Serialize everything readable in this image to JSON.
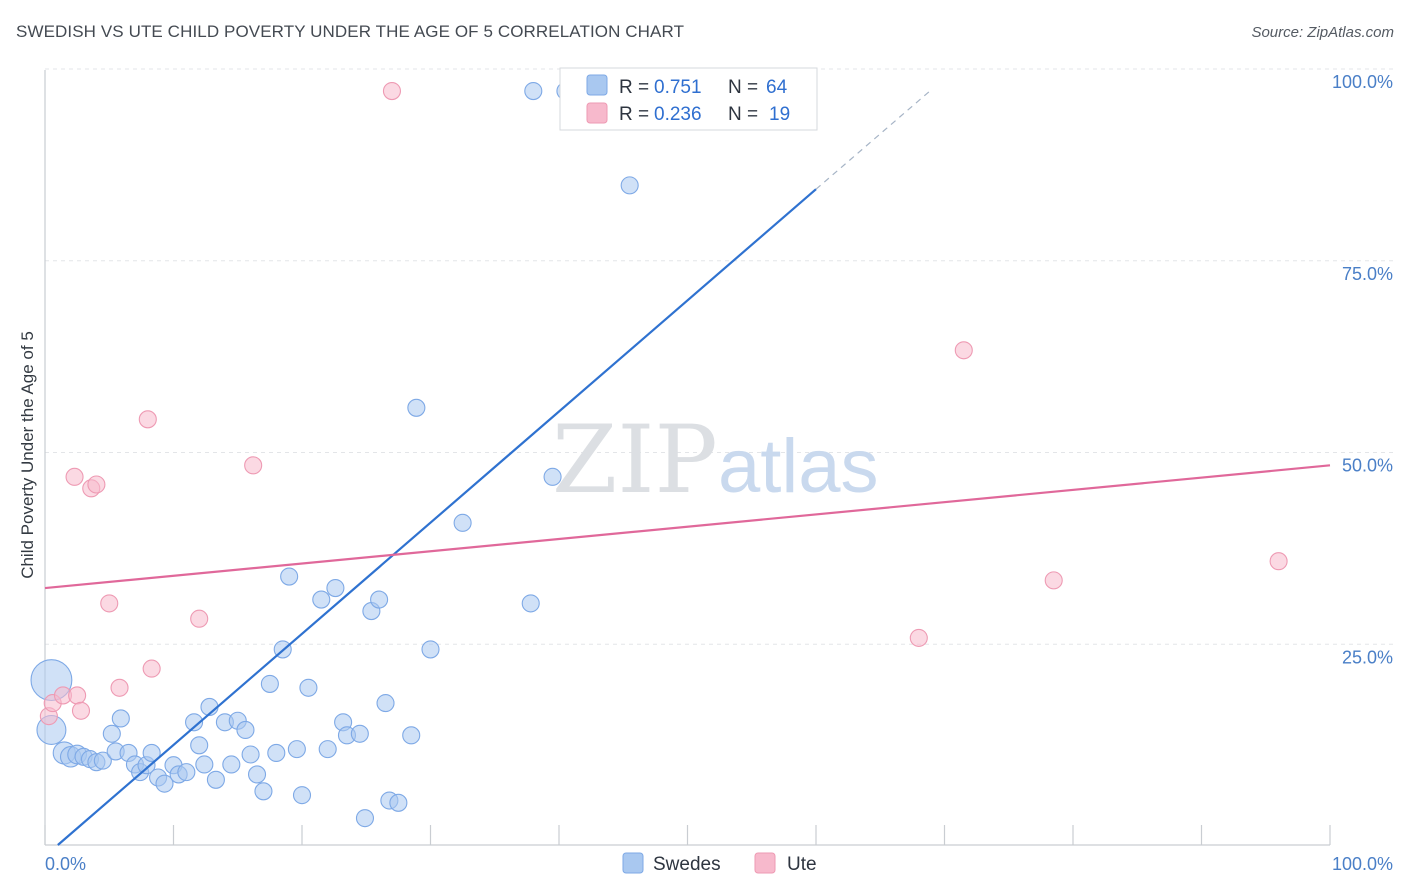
{
  "header": {
    "title": "SWEDISH VS UTE CHILD POVERTY UNDER THE AGE OF 5 CORRELATION CHART",
    "source": "Source: ZipAtlas.com"
  },
  "watermark": {
    "zip": "ZIP",
    "atlas": "atlas"
  },
  "legend": {
    "rows": [
      {
        "r_label": "R =",
        "r_value": "0.751",
        "n_label": "N =",
        "n_value": "64",
        "color": "#a9c8f0"
      },
      {
        "r_label": "R =",
        "r_value": "0.236",
        "n_label": "N =",
        "n_value": "19",
        "color": "#f7b9cc"
      }
    ]
  },
  "bottom_legend": {
    "items": [
      {
        "label": "Swedes",
        "color": "#a9c8f0"
      },
      {
        "label": "Ute",
        "color": "#f7b9cc"
      }
    ]
  },
  "chart_data": {
    "type": "scatter",
    "title": "SWEDISH VS UTE CHILD POVERTY UNDER THE AGE OF 5 CORRELATION CHART",
    "xlabel": "",
    "ylabel": "Child Poverty Under the Age of 5",
    "xlim": [
      0,
      100
    ],
    "ylim": [
      0,
      100
    ],
    "x_tick_labels": [
      "0.0%",
      "100.0%"
    ],
    "y_ticks": [
      25,
      50,
      75,
      100
    ],
    "y_tick_labels": [
      "25.0%",
      "50.0%",
      "75.0%",
      "100.0%"
    ],
    "grid": true,
    "legend_position": "top",
    "series": [
      {
        "name": "Swedes",
        "color": "#7ea9e6",
        "fill": "#a9c8f0",
        "trend": {
          "x1": 1.0,
          "y1": 0.0,
          "x2": 60.0,
          "y2": 85.5,
          "dash_to_x": 69.0,
          "dash_to_y": 98.5,
          "color": "#2f72d0"
        },
        "points": [
          {
            "x": 0.5,
            "y": 21.5,
            "s": 2.4
          },
          {
            "x": 0.5,
            "y": 15,
            "s": 1.7
          },
          {
            "x": 1.5,
            "y": 12,
            "s": 1.3
          },
          {
            "x": 2.0,
            "y": 11.5,
            "s": 1.2
          },
          {
            "x": 2.5,
            "y": 11.8,
            "s": 1.1
          },
          {
            "x": 3.0,
            "y": 11.5,
            "s": 1
          },
          {
            "x": 3.5,
            "y": 11.2,
            "s": 1
          },
          {
            "x": 4.0,
            "y": 10.8,
            "s": 1
          },
          {
            "x": 4.5,
            "y": 11,
            "s": 1
          },
          {
            "x": 5.5,
            "y": 12.2,
            "s": 1
          },
          {
            "x": 5.2,
            "y": 14.5,
            "s": 1
          },
          {
            "x": 5.9,
            "y": 16.5,
            "s": 1
          },
          {
            "x": 6.5,
            "y": 12,
            "s": 1
          },
          {
            "x": 7.0,
            "y": 10.5,
            "s": 1
          },
          {
            "x": 7.4,
            "y": 9.5,
            "s": 1
          },
          {
            "x": 7.9,
            "y": 10.4,
            "s": 1
          },
          {
            "x": 8.3,
            "y": 12,
            "s": 1
          },
          {
            "x": 8.8,
            "y": 8.8,
            "s": 1
          },
          {
            "x": 9.3,
            "y": 8.0,
            "s": 1
          },
          {
            "x": 10.0,
            "y": 10.4,
            "s": 1
          },
          {
            "x": 10.4,
            "y": 9.2,
            "s": 1
          },
          {
            "x": 11.0,
            "y": 9.5,
            "s": 1
          },
          {
            "x": 11.6,
            "y": 16,
            "s": 1
          },
          {
            "x": 12.0,
            "y": 13,
            "s": 1
          },
          {
            "x": 12.4,
            "y": 10.5,
            "s": 1
          },
          {
            "x": 12.8,
            "y": 18,
            "s": 1
          },
          {
            "x": 13.3,
            "y": 8.5,
            "s": 1
          },
          {
            "x": 14.0,
            "y": 16,
            "s": 1
          },
          {
            "x": 14.5,
            "y": 10.5,
            "s": 1
          },
          {
            "x": 15.0,
            "y": 16.2,
            "s": 1
          },
          {
            "x": 15.6,
            "y": 15,
            "s": 1
          },
          {
            "x": 16.0,
            "y": 11.8,
            "s": 1
          },
          {
            "x": 16.5,
            "y": 9.2,
            "s": 1
          },
          {
            "x": 17.0,
            "y": 7,
            "s": 1
          },
          {
            "x": 17.5,
            "y": 21,
            "s": 1
          },
          {
            "x": 18.0,
            "y": 12,
            "s": 1
          },
          {
            "x": 18.5,
            "y": 25.5,
            "s": 1
          },
          {
            "x": 19.0,
            "y": 35,
            "s": 1
          },
          {
            "x": 19.6,
            "y": 12.5,
            "s": 1
          },
          {
            "x": 20.0,
            "y": 6.5,
            "s": 1
          },
          {
            "x": 20.5,
            "y": 20.5,
            "s": 1
          },
          {
            "x": 21.5,
            "y": 32,
            "s": 1
          },
          {
            "x": 22.0,
            "y": 12.5,
            "s": 1
          },
          {
            "x": 22.6,
            "y": 33.5,
            "s": 1
          },
          {
            "x": 23.2,
            "y": 16,
            "s": 1
          },
          {
            "x": 23.5,
            "y": 14.3,
            "s": 1
          },
          {
            "x": 24.5,
            "y": 14.5,
            "s": 1
          },
          {
            "x": 24.9,
            "y": 3.5,
            "s": 1
          },
          {
            "x": 25.4,
            "y": 30.5,
            "s": 1
          },
          {
            "x": 26.0,
            "y": 32,
            "s": 1
          },
          {
            "x": 26.5,
            "y": 18.5,
            "s": 1
          },
          {
            "x": 26.8,
            "y": 5.8,
            "s": 1
          },
          {
            "x": 27.5,
            "y": 5.5,
            "s": 1
          },
          {
            "x": 28.5,
            "y": 14.3,
            "s": 1
          },
          {
            "x": 28.9,
            "y": 57,
            "s": 1
          },
          {
            "x": 30.0,
            "y": 25.5,
            "s": 1
          },
          {
            "x": 32.5,
            "y": 42,
            "s": 1
          },
          {
            "x": 37.8,
            "y": 31.5,
            "s": 1
          },
          {
            "x": 38.0,
            "y": 98.3,
            "s": 1
          },
          {
            "x": 39.5,
            "y": 48,
            "s": 1
          },
          {
            "x": 40.5,
            "y": 98.3,
            "s": 1
          },
          {
            "x": 43.0,
            "y": 98.3,
            "s": 1
          },
          {
            "x": 45.5,
            "y": 86,
            "s": 1
          },
          {
            "x": 54.0,
            "y": 98.3,
            "s": 1
          }
        ]
      },
      {
        "name": "Ute",
        "color": "#ee9ab3",
        "fill": "#f7b9cc",
        "trend": {
          "x1": 0.0,
          "y1": 33.5,
          "x2": 100.0,
          "y2": 49.5,
          "color": "#e0689a"
        },
        "points": [
          {
            "x": 0.3,
            "y": 16.8,
            "s": 1
          },
          {
            "x": 0.6,
            "y": 18.5,
            "s": 1
          },
          {
            "x": 1.4,
            "y": 19.5,
            "s": 1
          },
          {
            "x": 2.3,
            "y": 48,
            "s": 1
          },
          {
            "x": 2.5,
            "y": 19.5,
            "s": 1
          },
          {
            "x": 2.8,
            "y": 17.5,
            "s": 1
          },
          {
            "x": 3.6,
            "y": 46.5,
            "s": 1
          },
          {
            "x": 4.0,
            "y": 47,
            "s": 1
          },
          {
            "x": 5.0,
            "y": 31.5,
            "s": 1
          },
          {
            "x": 5.8,
            "y": 20.5,
            "s": 1
          },
          {
            "x": 8.0,
            "y": 55.5,
            "s": 1
          },
          {
            "x": 8.3,
            "y": 23,
            "s": 1
          },
          {
            "x": 12.0,
            "y": 29.5,
            "s": 1
          },
          {
            "x": 16.2,
            "y": 49.5,
            "s": 1
          },
          {
            "x": 27.0,
            "y": 98.3,
            "s": 1
          },
          {
            "x": 68.0,
            "y": 27,
            "s": 1
          },
          {
            "x": 71.5,
            "y": 64.5,
            "s": 1
          },
          {
            "x": 78.5,
            "y": 34.5,
            "s": 1
          },
          {
            "x": 96.0,
            "y": 37,
            "s": 1
          }
        ]
      }
    ]
  }
}
